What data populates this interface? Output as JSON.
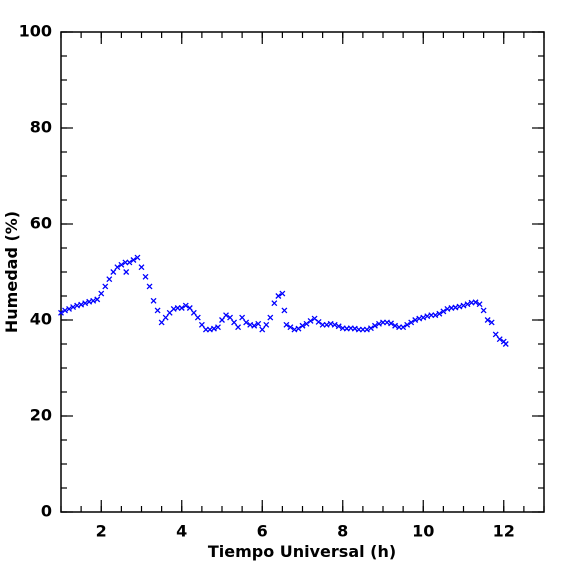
{
  "chart_data": {
    "type": "scatter",
    "x_label": "Tiempo Universal (h)",
    "y_label": "Humedad (%)",
    "xlim": [
      1,
      13
    ],
    "ylim": [
      0,
      100
    ],
    "xticks": [
      2,
      4,
      6,
      8,
      10,
      12
    ],
    "yticks": [
      0,
      20,
      40,
      60,
      80,
      100
    ],
    "series": [
      {
        "color": "#0000ff",
        "x": [
          1.0,
          1.1,
          1.2,
          1.3,
          1.4,
          1.5,
          1.6,
          1.7,
          1.8,
          1.9,
          2.0,
          2.1,
          2.2,
          2.3,
          2.4,
          2.5,
          2.6,
          2.62,
          2.7,
          2.8,
          2.9,
          3.0,
          3.1,
          3.2,
          3.3,
          3.4,
          3.5,
          3.6,
          3.7,
          3.8,
          3.9,
          4.0,
          4.1,
          4.2,
          4.3,
          4.4,
          4.5,
          4.6,
          4.7,
          4.8,
          4.9,
          5.0,
          5.1,
          5.2,
          5.3,
          5.4,
          5.5,
          5.6,
          5.7,
          5.8,
          5.9,
          6.0,
          6.1,
          6.2,
          6.3,
          6.4,
          6.5,
          6.55,
          6.6,
          6.7,
          6.8,
          6.9,
          7.0,
          7.1,
          7.2,
          7.3,
          7.4,
          7.5,
          7.6,
          7.7,
          7.8,
          7.9,
          8.0,
          8.1,
          8.2,
          8.3,
          8.4,
          8.5,
          8.6,
          8.7,
          8.8,
          8.9,
          9.0,
          9.1,
          9.2,
          9.3,
          9.4,
          9.5,
          9.6,
          9.7,
          9.8,
          9.9,
          10.0,
          10.1,
          10.2,
          10.3,
          10.4,
          10.5,
          10.6,
          10.7,
          10.8,
          10.9,
          11.0,
          11.1,
          11.2,
          11.3,
          11.4,
          11.5,
          11.6,
          11.7,
          11.8,
          11.9,
          12.0,
          12.05
        ],
        "values": [
          41.5,
          42,
          42.3,
          42.7,
          43,
          43.2,
          43.5,
          43.8,
          44,
          44.3,
          45.5,
          47,
          48.5,
          50,
          51,
          51.5,
          52,
          50,
          52,
          52.5,
          53,
          51,
          49,
          47,
          44,
          42,
          39.5,
          40.5,
          41.5,
          42.3,
          42.5,
          42.5,
          43,
          42.5,
          41.5,
          40.5,
          39,
          38,
          38,
          38.2,
          38.5,
          40,
          41,
          40.5,
          39.5,
          38.5,
          40.5,
          39.5,
          39,
          38.8,
          39.2,
          38,
          39,
          40.5,
          43.5,
          45,
          45.5,
          42,
          39,
          38.5,
          38,
          38.2,
          38.8,
          39.2,
          39.8,
          40.3,
          39.6,
          39,
          39,
          39.2,
          39,
          38.7,
          38.3,
          38.2,
          38.3,
          38.2,
          38,
          38,
          38,
          38.3,
          38.8,
          39.2,
          39.5,
          39.5,
          39.3,
          38.8,
          38.5,
          38.5,
          39,
          39.5,
          40,
          40.3,
          40.5,
          40.8,
          41,
          41,
          41.3,
          41.8,
          42.3,
          42.5,
          42.6,
          42.8,
          43,
          43.3,
          43.6,
          43.7,
          43.3,
          42,
          40,
          39.5,
          37,
          36,
          35.5,
          35
        ]
      }
    ]
  }
}
